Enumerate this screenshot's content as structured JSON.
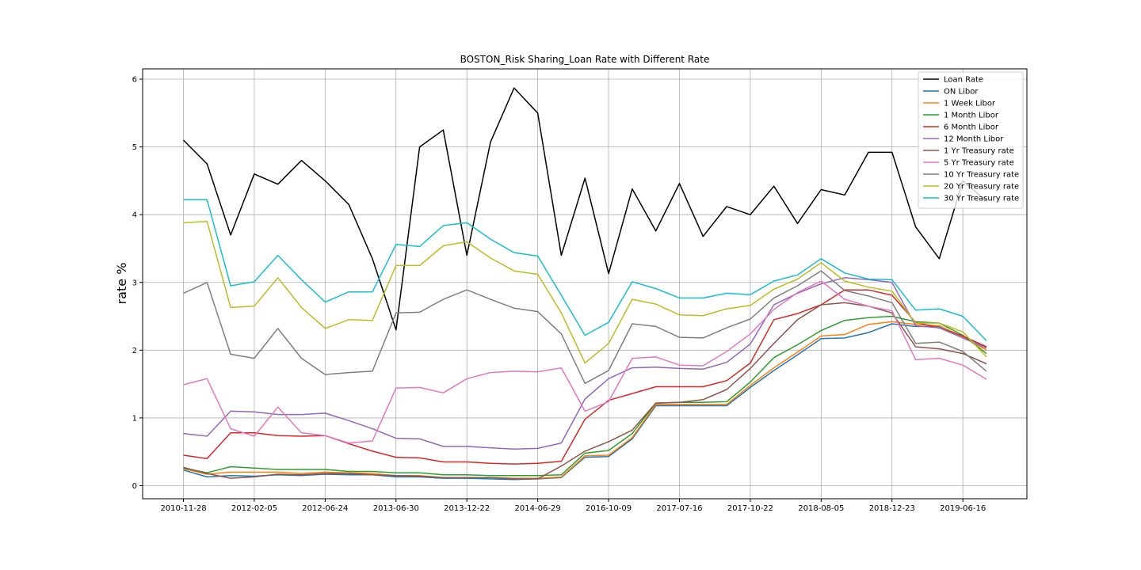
{
  "chart_data": {
    "type": "line",
    "title": "BOSTON_Risk Sharing_Loan Rate with Different Rate",
    "xlabel": "",
    "ylabel": "rate %",
    "ylim": [
      -0.2,
      6.15
    ],
    "yticks": [
      0,
      1,
      2,
      3,
      4,
      5,
      6
    ],
    "grid": true,
    "legend_position": "upper right",
    "x_tick_labels": [
      "2010-11-28",
      "2012-02-05",
      "2012-06-24",
      "2013-06-30",
      "2013-12-22",
      "2014-06-29",
      "2016-10-09",
      "2017-07-16",
      "2017-10-22",
      "2018-08-05",
      "2018-12-23",
      "2019-06-16"
    ],
    "series": [
      {
        "name": "Loan Rate",
        "color": "#000000",
        "values": [
          5.1,
          4.75,
          3.7,
          4.6,
          4.45,
          4.8,
          4.5,
          4.15,
          3.35,
          2.3,
          5.0,
          5.25,
          3.4,
          5.07,
          5.87,
          5.5,
          3.4,
          4.54,
          3.13,
          4.38,
          3.76,
          4.46,
          3.68,
          4.12,
          4.0,
          4.42,
          3.87,
          4.37,
          4.29,
          4.92,
          4.92,
          3.82,
          3.35,
          4.5,
          4.2
        ]
      },
      {
        "name": "ON Libor",
        "color": "#1f77b4",
        "values": [
          0.23,
          0.13,
          0.15,
          0.14,
          0.16,
          0.15,
          0.17,
          0.16,
          0.16,
          0.13,
          0.13,
          0.11,
          0.11,
          0.1,
          0.09,
          0.1,
          0.12,
          0.42,
          0.43,
          0.69,
          1.18,
          1.18,
          1.18,
          1.18,
          1.45,
          1.7,
          1.93,
          2.17,
          2.18,
          2.26,
          2.39,
          2.35,
          2.35,
          2.2,
          2.05
        ]
      },
      {
        "name": "1 Week Libor",
        "color": "#ff7f0e",
        "values": [
          0.25,
          0.17,
          0.2,
          0.2,
          0.2,
          0.18,
          0.2,
          0.19,
          0.18,
          0.15,
          0.15,
          0.12,
          0.12,
          0.12,
          0.11,
          0.11,
          0.13,
          0.44,
          0.45,
          0.71,
          1.2,
          1.2,
          1.2,
          1.2,
          1.48,
          1.74,
          1.97,
          2.21,
          2.23,
          2.38,
          2.42,
          2.38,
          2.36,
          2.2,
          2.0
        ]
      },
      {
        "name": "1 Month Libor",
        "color": "#2ca02c",
        "values": [
          0.26,
          0.19,
          0.28,
          0.26,
          0.24,
          0.24,
          0.24,
          0.21,
          0.21,
          0.19,
          0.19,
          0.16,
          0.16,
          0.15,
          0.15,
          0.15,
          0.16,
          0.48,
          0.52,
          0.77,
          1.22,
          1.23,
          1.23,
          1.24,
          1.53,
          1.89,
          2.08,
          2.29,
          2.44,
          2.48,
          2.5,
          2.42,
          2.4,
          2.22,
          1.95
        ]
      },
      {
        "name": "6 Month Libor",
        "color": "#d62728",
        "values": [
          0.45,
          0.4,
          0.78,
          0.78,
          0.74,
          0.73,
          0.74,
          0.62,
          0.51,
          0.42,
          0.41,
          0.35,
          0.35,
          0.33,
          0.32,
          0.33,
          0.36,
          0.98,
          1.26,
          1.36,
          1.46,
          1.46,
          1.46,
          1.55,
          1.81,
          2.45,
          2.54,
          2.67,
          2.89,
          2.89,
          2.81,
          2.41,
          2.33,
          2.21,
          2.05
        ]
      },
      {
        "name": "12 Month Libor",
        "color": "#9467bd",
        "values": [
          0.77,
          0.73,
          1.1,
          1.09,
          1.05,
          1.05,
          1.07,
          0.96,
          0.84,
          0.7,
          0.69,
          0.58,
          0.58,
          0.56,
          0.54,
          0.55,
          0.63,
          1.28,
          1.58,
          1.74,
          1.75,
          1.73,
          1.72,
          1.82,
          2.09,
          2.67,
          2.84,
          2.98,
          3.07,
          3.04,
          3.0,
          2.36,
          2.33,
          2.18,
          2.03
        ]
      },
      {
        "name": "1 Yr Treasury rate",
        "color": "#8c564b",
        "values": [
          0.27,
          0.18,
          0.11,
          0.13,
          0.17,
          0.16,
          0.18,
          0.18,
          0.16,
          0.15,
          0.14,
          0.12,
          0.12,
          0.12,
          0.1,
          0.1,
          0.29,
          0.51,
          0.65,
          0.82,
          1.22,
          1.23,
          1.27,
          1.42,
          1.73,
          2.1,
          2.45,
          2.67,
          2.7,
          2.65,
          2.55,
          2.05,
          2.02,
          1.95,
          1.8
        ]
      },
      {
        "name": "5 Yr Treasury rate",
        "color": "#e377c2",
        "values": [
          1.49,
          1.58,
          0.84,
          0.73,
          1.16,
          0.78,
          0.74,
          0.63,
          0.66,
          1.44,
          1.45,
          1.37,
          1.58,
          1.67,
          1.69,
          1.68,
          1.74,
          1.1,
          1.24,
          1.88,
          1.9,
          1.78,
          1.77,
          1.98,
          2.24,
          2.6,
          2.85,
          3.02,
          2.75,
          2.65,
          2.58,
          1.86,
          1.88,
          1.78,
          1.57
        ]
      },
      {
        "name": "10 Yr Treasury rate",
        "color": "#7f7f7f",
        "values": [
          2.84,
          3.0,
          1.94,
          1.88,
          2.32,
          1.88,
          1.64,
          1.67,
          1.69,
          2.55,
          2.56,
          2.75,
          2.89,
          2.75,
          2.62,
          2.57,
          2.24,
          1.51,
          1.7,
          2.39,
          2.35,
          2.19,
          2.18,
          2.33,
          2.46,
          2.77,
          2.95,
          3.17,
          2.88,
          2.8,
          2.7,
          2.1,
          2.12,
          1.98,
          1.69
        ]
      },
      {
        "name": "20 Yr Treasury rate",
        "color": "#bcbd22",
        "values": [
          3.88,
          3.9,
          2.63,
          2.65,
          3.07,
          2.63,
          2.32,
          2.45,
          2.44,
          3.25,
          3.25,
          3.54,
          3.6,
          3.36,
          3.17,
          3.12,
          2.55,
          1.81,
          2.1,
          2.75,
          2.68,
          2.52,
          2.51,
          2.61,
          2.66,
          2.9,
          3.05,
          3.29,
          3.02,
          2.93,
          2.87,
          2.4,
          2.4,
          2.27,
          1.9
        ]
      },
      {
        "name": "30 Yr Treasury rate",
        "color": "#17becf",
        "values": [
          4.22,
          4.22,
          2.95,
          3.01,
          3.4,
          3.04,
          2.71,
          2.86,
          2.86,
          3.56,
          3.53,
          3.84,
          3.88,
          3.64,
          3.44,
          3.39,
          2.81,
          2.22,
          2.41,
          3.01,
          2.91,
          2.77,
          2.77,
          2.84,
          2.82,
          3.02,
          3.11,
          3.35,
          3.14,
          3.05,
          3.04,
          2.59,
          2.61,
          2.5,
          2.14
        ]
      }
    ]
  }
}
